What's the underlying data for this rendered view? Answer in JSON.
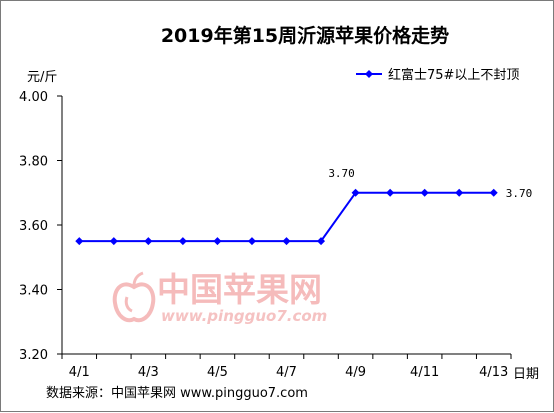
{
  "chart_data": {
    "type": "line",
    "title": "2019年第15周沂源苹果价格走势",
    "ylabel": "元/斤",
    "xlabel": "日期",
    "ylim": [
      3.2,
      4.0
    ],
    "yticks": [
      "4.00",
      "3.80",
      "3.60",
      "3.40",
      "3.20"
    ],
    "x": [
      "4/1",
      "4/2",
      "4/3",
      "4/4",
      "4/5",
      "4/6",
      "4/7",
      "4/8",
      "4/9",
      "4/10",
      "4/11",
      "4/12",
      "4/13"
    ],
    "xtick_labels": [
      "4/1",
      "4/3",
      "4/5",
      "4/7",
      "4/9",
      "4/11",
      "4/13"
    ],
    "series": [
      {
        "name": "红富士75#以上不封顶",
        "values": [
          3.55,
          3.55,
          3.55,
          3.55,
          3.55,
          3.55,
          3.55,
          3.55,
          3.7,
          3.7,
          3.7,
          3.7,
          3.7
        ],
        "color": "#0000ff"
      }
    ],
    "data_labels": [
      {
        "index": 8,
        "text": "3.70"
      },
      {
        "index": 12,
        "text": "3.70"
      }
    ],
    "legend_position": "top-right",
    "grid": false
  },
  "source": "数据来源：中国苹果网 www.pingguo7.com",
  "watermark": {
    "text": "中国苹果网",
    "url": "www.pingguo7.com"
  }
}
